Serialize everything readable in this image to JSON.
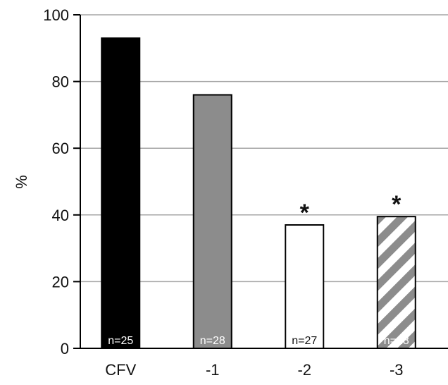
{
  "chart_data": {
    "type": "bar",
    "title": "",
    "xlabel": "",
    "ylabel": "%",
    "ylim": [
      0,
      100
    ],
    "yticks": [
      0,
      20,
      40,
      60,
      80,
      100
    ],
    "grid": "horizontal",
    "categories": [
      "CFV",
      "-1",
      "-2",
      "-3"
    ],
    "values": [
      93,
      76,
      37,
      39.5
    ],
    "sample_sizes": [
      "n=25",
      "n=28",
      "n=27",
      "n=28"
    ],
    "significance_marks": [
      "",
      "",
      "*",
      "*"
    ],
    "bar_fills": [
      "solid-black",
      "solid-gray",
      "white",
      "gray-white-diagonal-stripes"
    ],
    "colors": {
      "black": "#000000",
      "gray": "#8c8c8c",
      "white": "#ffffff",
      "grid": "#a6a6a6"
    }
  }
}
